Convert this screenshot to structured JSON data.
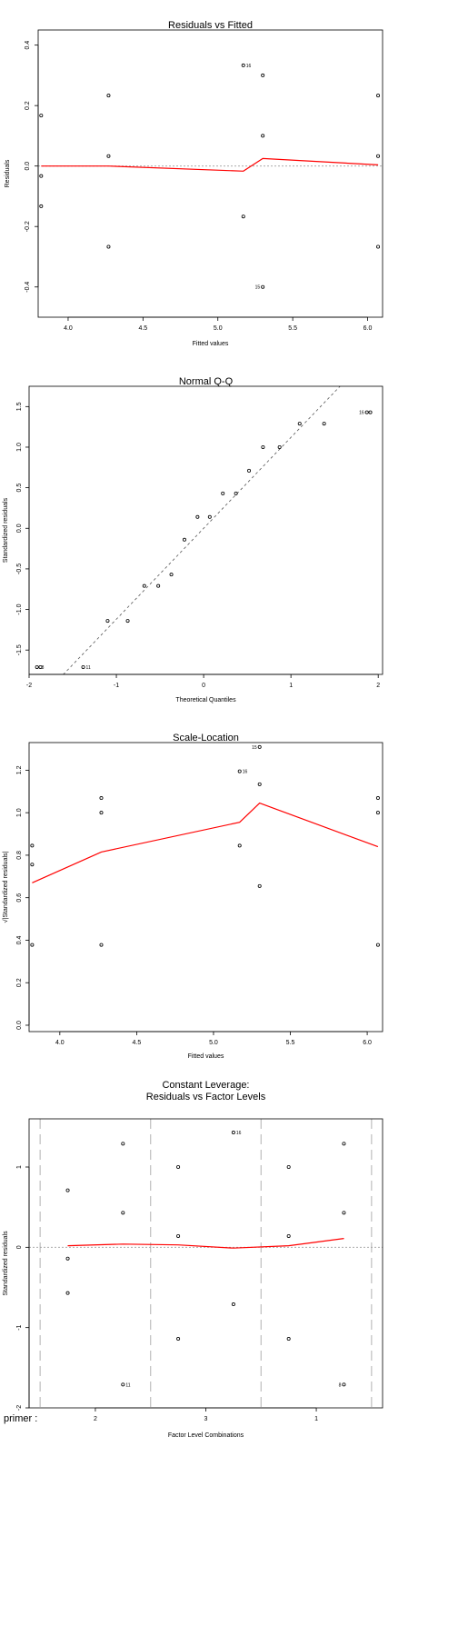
{
  "chart_data": [
    {
      "type": "scatter",
      "title": "Residuals vs Fitted",
      "xlabel": "Fitted values",
      "ylabel": "Residuals",
      "xlim": [
        3.8,
        6.1
      ],
      "ylim": [
        -0.5,
        0.45
      ],
      "xticks": [
        4.0,
        4.5,
        5.0,
        5.5,
        6.0
      ],
      "xtick_labels": [
        "4.0",
        "4.5",
        "5.0",
        "5.5",
        "6.0"
      ],
      "yticks": [
        -0.4,
        -0.2,
        0.0,
        0.2,
        0.4
      ],
      "ytick_labels": [
        "-0.4",
        "-0.2",
        "0.0",
        "0.2",
        "0.4"
      ],
      "reference_line": 0,
      "points": [
        {
          "x": 3.82,
          "y": 0.167
        },
        {
          "x": 3.82,
          "y": -0.033
        },
        {
          "x": 3.82,
          "y": -0.133
        },
        {
          "x": 4.27,
          "y": 0.233
        },
        {
          "x": 4.27,
          "y": 0.033
        },
        {
          "x": 4.27,
          "y": -0.267
        },
        {
          "x": 5.17,
          "y": 0.333
        },
        {
          "x": 5.17,
          "y": -0.167
        },
        {
          "x": 5.3,
          "y": 0.3
        },
        {
          "x": 5.3,
          "y": 0.1
        },
        {
          "x": 5.3,
          "y": -0.4
        },
        {
          "x": 6.07,
          "y": 0.233
        },
        {
          "x": 6.07,
          "y": 0.033
        },
        {
          "x": 6.07,
          "y": -0.267
        }
      ],
      "point_labels": [
        {
          "x": 5.17,
          "y": 0.333,
          "text": "16"
        },
        {
          "x": 5.3,
          "y": -0.4,
          "text": "15"
        }
      ],
      "smooth": [
        {
          "x": 3.82,
          "y": 0.0
        },
        {
          "x": 4.27,
          "y": 0.0
        },
        {
          "x": 5.17,
          "y": -0.017
        },
        {
          "x": 5.3,
          "y": 0.025
        },
        {
          "x": 6.07,
          "y": 0.004
        }
      ]
    },
    {
      "type": "scatter",
      "title": "Normal Q-Q",
      "xlabel": "Theoretical Quantiles",
      "ylabel": "Standardized residuals",
      "xlim": [
        -2.0,
        2.05
      ],
      "ylim": [
        -1.8,
        1.75
      ],
      "xticks": [
        -2,
        -1,
        0,
        1,
        2
      ],
      "xtick_labels": [
        "-2",
        "-1",
        "0",
        "1",
        "2"
      ],
      "yticks": [
        -1.5,
        -1.0,
        -0.5,
        0.0,
        0.5,
        1.0,
        1.5
      ],
      "ytick_labels": [
        "-1.5",
        "-1.0",
        "-0.5",
        "0.0",
        "0.5",
        "1.0",
        "1.5"
      ],
      "qq_line": {
        "intercept": 0.0,
        "slope": 1.12
      },
      "points": [
        {
          "x": -1.91,
          "y": -1.71
        },
        {
          "x": -1.87,
          "y": -1.71
        },
        {
          "x": -1.38,
          "y": -1.71
        },
        {
          "x": -1.1,
          "y": -1.14
        },
        {
          "x": -0.87,
          "y": -1.14
        },
        {
          "x": -0.68,
          "y": -0.71
        },
        {
          "x": -0.52,
          "y": -0.71
        },
        {
          "x": -0.37,
          "y": -0.57
        },
        {
          "x": -0.22,
          "y": -0.14
        },
        {
          "x": -0.07,
          "y": 0.14
        },
        {
          "x": 0.07,
          "y": 0.14
        },
        {
          "x": 0.22,
          "y": 0.43
        },
        {
          "x": 0.37,
          "y": 0.43
        },
        {
          "x": 0.52,
          "y": 0.71
        },
        {
          "x": 0.68,
          "y": 1.0
        },
        {
          "x": 0.87,
          "y": 1.0
        },
        {
          "x": 1.1,
          "y": 1.29
        },
        {
          "x": 1.38,
          "y": 1.29
        },
        {
          "x": 1.87,
          "y": 1.43
        },
        {
          "x": 1.91,
          "y": 1.43
        }
      ],
      "point_labels": [
        {
          "x": -1.89,
          "y": -1.71,
          "text": "8"
        },
        {
          "x": -1.38,
          "y": -1.71,
          "text": "11"
        },
        {
          "x": 1.87,
          "y": 1.43,
          "text": "16"
        }
      ]
    },
    {
      "type": "scatter",
      "title": "Scale-Location",
      "xlabel": "Fitted values",
      "ylabel": "√|Standardized residuals|",
      "xlim": [
        3.8,
        6.1
      ],
      "ylim": [
        -0.03,
        1.33
      ],
      "xticks": [
        4.0,
        4.5,
        5.0,
        5.5,
        6.0
      ],
      "xtick_labels": [
        "4.0",
        "4.5",
        "5.0",
        "5.5",
        "6.0"
      ],
      "yticks": [
        0.0,
        0.2,
        0.4,
        0.6,
        0.8,
        1.0,
        1.2
      ],
      "ytick_labels": [
        "0.0",
        "0.2",
        "0.4",
        "0.6",
        "0.8",
        "1.0",
        "1.2"
      ],
      "points": [
        {
          "x": 3.82,
          "y": 0.845
        },
        {
          "x": 3.82,
          "y": 0.756
        },
        {
          "x": 3.82,
          "y": 0.378
        },
        {
          "x": 4.27,
          "y": 1.069
        },
        {
          "x": 4.27,
          "y": 1.0
        },
        {
          "x": 4.27,
          "y": 0.378
        },
        {
          "x": 5.17,
          "y": 1.195
        },
        {
          "x": 5.17,
          "y": 0.845
        },
        {
          "x": 5.3,
          "y": 1.309
        },
        {
          "x": 5.3,
          "y": 1.134
        },
        {
          "x": 5.3,
          "y": 0.655
        },
        {
          "x": 6.07,
          "y": 1.069
        },
        {
          "x": 6.07,
          "y": 1.0
        },
        {
          "x": 6.07,
          "y": 0.378
        }
      ],
      "point_labels": [
        {
          "x": 5.3,
          "y": 1.309,
          "text": "15"
        },
        {
          "x": 5.17,
          "y": 1.195,
          "text": "16"
        }
      ],
      "smooth": [
        {
          "x": 3.82,
          "y": 0.67
        },
        {
          "x": 4.27,
          "y": 0.815
        },
        {
          "x": 5.17,
          "y": 0.955
        },
        {
          "x": 5.3,
          "y": 1.045
        },
        {
          "x": 6.07,
          "y": 0.84
        }
      ]
    },
    {
      "type": "scatter",
      "title": "Constant Leverage:",
      "subtitle": "Residuals vs Factor Levels",
      "xlabel": "Factor Level Combinations",
      "ylabel": "Standardized residuals",
      "factor_name": "primer :",
      "xlim": [
        0.4,
        3.6
      ],
      "ylim": [
        -2.0,
        1.6
      ],
      "xticks": [
        1,
        2,
        3
      ],
      "xtick_labels": [
        "2",
        "3",
        "1"
      ],
      "yticks": [
        -2,
        -1,
        0,
        1
      ],
      "ytick_labels": [
        "-2",
        "-1",
        "0",
        "1"
      ],
      "reference_line": 0,
      "separators": [
        0.5,
        1.5,
        2.5,
        3.5
      ],
      "points": [
        {
          "x": 0.75,
          "y": 0.71
        },
        {
          "x": 0.75,
          "y": -0.14
        },
        {
          "x": 0.75,
          "y": -0.57
        },
        {
          "x": 1.25,
          "y": 1.29
        },
        {
          "x": 1.25,
          "y": 0.43
        },
        {
          "x": 1.25,
          "y": -1.71
        },
        {
          "x": 1.75,
          "y": 1.0
        },
        {
          "x": 1.75,
          "y": 0.14
        },
        {
          "x": 1.75,
          "y": -1.14
        },
        {
          "x": 2.25,
          "y": 1.43
        },
        {
          "x": 2.25,
          "y": -0.71
        },
        {
          "x": 2.75,
          "y": 1.0
        },
        {
          "x": 2.75,
          "y": 0.14
        },
        {
          "x": 2.75,
          "y": -1.14
        },
        {
          "x": 3.25,
          "y": 1.29
        },
        {
          "x": 3.25,
          "y": 0.43
        },
        {
          "x": 3.25,
          "y": -1.71
        }
      ],
      "point_labels": [
        {
          "x": 1.25,
          "y": -1.71,
          "text": "11"
        },
        {
          "x": 2.25,
          "y": 1.43,
          "text": "16"
        },
        {
          "x": 3.25,
          "y": -1.71,
          "text": "8"
        }
      ],
      "smooth": [
        {
          "x": 0.75,
          "y": 0.02
        },
        {
          "x": 1.25,
          "y": 0.04
        },
        {
          "x": 1.75,
          "y": 0.03
        },
        {
          "x": 2.25,
          "y": -0.01
        },
        {
          "x": 2.75,
          "y": 0.02
        },
        {
          "x": 3.25,
          "y": 0.11
        }
      ]
    }
  ],
  "colors": {
    "axis": "#000000",
    "points": "#000000",
    "smooth": "#ff0000",
    "reference": "#9e9e9e",
    "separator": "#bfbfbf"
  }
}
